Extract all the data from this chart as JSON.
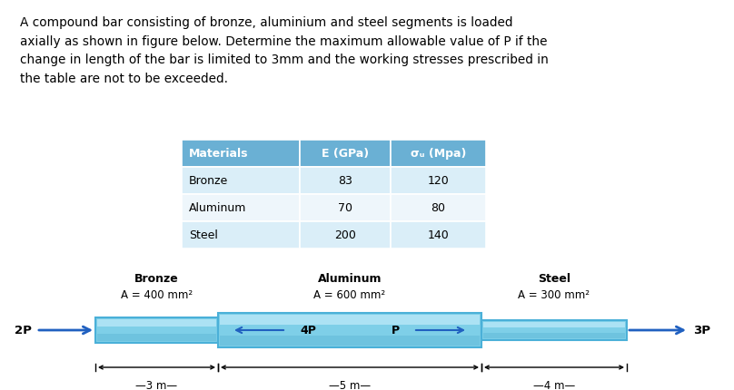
{
  "title_text": "A compound bar consisting of bronze, aluminium and steel segments is loaded\naxially as shown in figure below. Determine the maximum allowable value of P if the\nchange in length of the bar is limited to 3mm and the working stresses prescribed in\nthe table are not to be exceeded.",
  "table_headers": [
    "Materials",
    "E (GPa)",
    "σᵤ (Mpa)"
  ],
  "table_rows": [
    [
      "Bronze",
      "83",
      "120"
    ],
    [
      "Aluminum",
      "70",
      "80"
    ],
    [
      "Steel",
      "200",
      "140"
    ]
  ],
  "table_header_bg": "#6ab0d4",
  "table_row_bg_even": "#daeef8",
  "table_row_bg_odd": "#eef6fb",
  "bar_color": "#7ecfe8",
  "bar_highlight": "#b8e8f8",
  "bar_border": "#4ab0d8",
  "arrow_color": "#2060c0",
  "segment_labels": [
    "Bronze",
    "Aluminum",
    "Steel"
  ],
  "segment_areas": [
    "A = 400 mm²",
    "A = 600 mm²",
    "A = 300 mm²"
  ],
  "segment_lengths": [
    "3 m",
    "5 m",
    "4 m"
  ],
  "left_force": "2P",
  "right_force": "3P",
  "inner_forces": [
    "4P",
    "P"
  ]
}
